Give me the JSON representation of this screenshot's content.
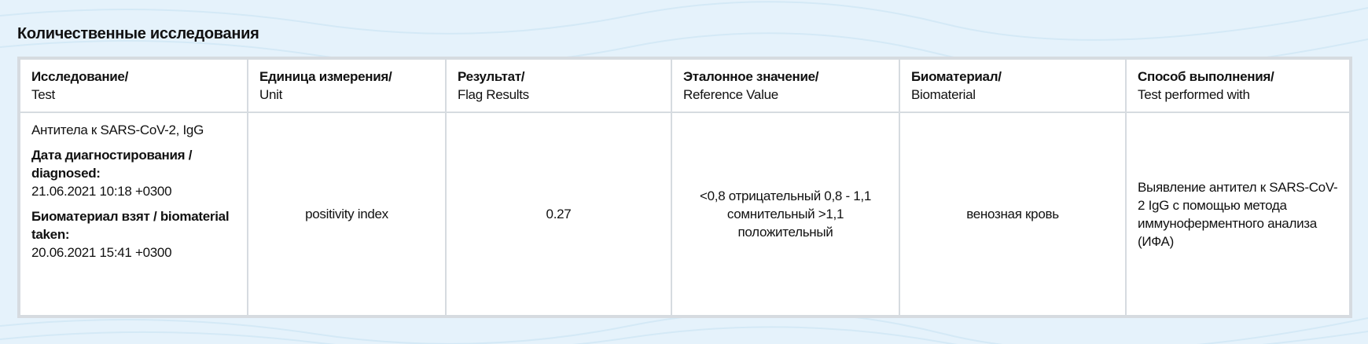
{
  "section_title": "Количественные исследования",
  "columns": [
    {
      "ru": "Исследование/",
      "en": "Test"
    },
    {
      "ru": "Единица измерения/",
      "en": "Unit"
    },
    {
      "ru": "Результат/",
      "en": "Flag Results"
    },
    {
      "ru": "Эталонное значение/",
      "en": "Reference Value"
    },
    {
      "ru": "Биоматериал/",
      "en": "Biomaterial"
    },
    {
      "ru": "Способ выполнения/",
      "en": "Test performed with"
    }
  ],
  "rows": [
    {
      "test": "Антитела к SARS-CoV-2, IgG",
      "diagnosed_label": "Дата диагностирования / diagnosed:",
      "diagnosed_value": "21.06.2021 10:18 +0300",
      "taken_label": "Биоматериал взят / biomaterial taken:",
      "taken_value": "20.06.2021 15:41 +0300",
      "unit": "positivity index",
      "result": "0.27",
      "reference": "<0,8 отрицательный 0,8 - 1,1 сомнительный >1,1 положительный",
      "biomaterial": "венозная кровь",
      "method": "Выявление антител к SARS-CoV-2 IgG с помощью метода иммуноферментного анализа (ИФА)"
    }
  ]
}
